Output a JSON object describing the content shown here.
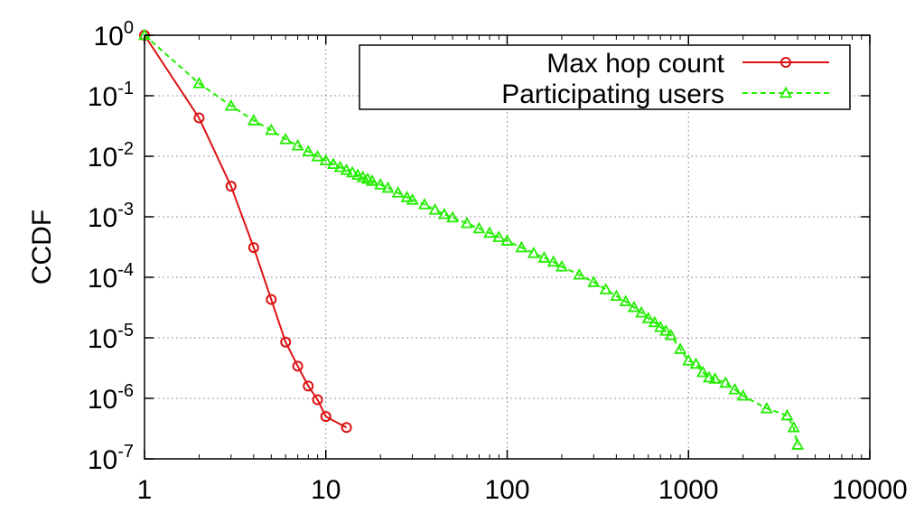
{
  "chart_data": {
    "type": "line",
    "title": "",
    "xlabel": "",
    "ylabel": "CCDF",
    "xscale": "log",
    "yscale": "log",
    "xlim": [
      1,
      10000
    ],
    "ylim": [
      1e-07,
      1
    ],
    "x_ticks": [
      {
        "value": 1,
        "label": "1"
      },
      {
        "value": 10,
        "label": "10"
      },
      {
        "value": 100,
        "label": "100"
      },
      {
        "value": 1000,
        "label": "1000"
      },
      {
        "value": 10000,
        "label": "10000"
      }
    ],
    "y_ticks": [
      {
        "value": 1,
        "base": "10",
        "exp": "0"
      },
      {
        "value": 0.1,
        "base": "10",
        "exp": "-1"
      },
      {
        "value": 0.01,
        "base": "10",
        "exp": "-2"
      },
      {
        "value": 0.001,
        "base": "10",
        "exp": "-3"
      },
      {
        "value": 0.0001,
        "base": "10",
        "exp": "-4"
      },
      {
        "value": 1e-05,
        "base": "10",
        "exp": "-5"
      },
      {
        "value": 1e-06,
        "base": "10",
        "exp": "-6"
      },
      {
        "value": 1e-07,
        "base": "10",
        "exp": "-7"
      }
    ],
    "grid": true,
    "legend_position": "top-right",
    "series": [
      {
        "name": "Max hop count",
        "color": "#dd1111",
        "line_style": "solid",
        "marker": "circle",
        "x": [
          1,
          2,
          3,
          4,
          5,
          6,
          7,
          8,
          9,
          10,
          13
        ],
        "y": [
          1,
          0.043,
          0.0032,
          0.00031,
          4.3e-05,
          8.5e-06,
          3.4e-06,
          1.6e-06,
          9.5e-07,
          5e-07,
          3.3e-07
        ]
      },
      {
        "name": "Participating users",
        "color": "#22ee00",
        "line_style": "dashed",
        "marker": "triangle",
        "x": [
          1,
          2,
          3,
          4,
          5,
          6,
          7,
          8,
          9,
          10,
          11,
          12,
          13,
          14,
          15,
          16,
          17,
          18,
          20,
          22,
          25,
          28,
          30,
          35,
          40,
          45,
          50,
          60,
          70,
          80,
          90,
          100,
          120,
          140,
          160,
          180,
          200,
          250,
          300,
          350,
          400,
          450,
          500,
          550,
          600,
          650,
          700,
          750,
          800,
          900,
          1000,
          1100,
          1200,
          1300,
          1400,
          1600,
          1800,
          2000,
          2700,
          3500,
          3800,
          4000
        ],
        "y": [
          1,
          0.16,
          0.068,
          0.039,
          0.027,
          0.019,
          0.015,
          0.012,
          0.0099,
          0.0085,
          0.0074,
          0.0066,
          0.0059,
          0.0054,
          0.0049,
          0.0045,
          0.0042,
          0.0039,
          0.0034,
          0.003,
          0.0025,
          0.0021,
          0.0019,
          0.0016,
          0.0013,
          0.0011,
          0.00097,
          0.00078,
          0.00064,
          0.00054,
          0.00046,
          0.0004,
          0.00031,
          0.00025,
          0.00021,
          0.00018,
          0.00015,
          0.00011,
          8.3e-05,
          6.3e-05,
          4.9e-05,
          4e-05,
          3.2e-05,
          2.6e-05,
          2.1e-05,
          1.8e-05,
          1.5e-05,
          1.3e-05,
          1.1e-05,
          6.5e-06,
          4.2e-06,
          3.7e-06,
          2.7e-06,
          2.2e-06,
          2.1e-06,
          1.8e-06,
          1.4e-06,
          1.1e-06,
          6.8e-07,
          5.2e-07,
          3.3e-07,
          1.7e-07
        ]
      }
    ]
  }
}
